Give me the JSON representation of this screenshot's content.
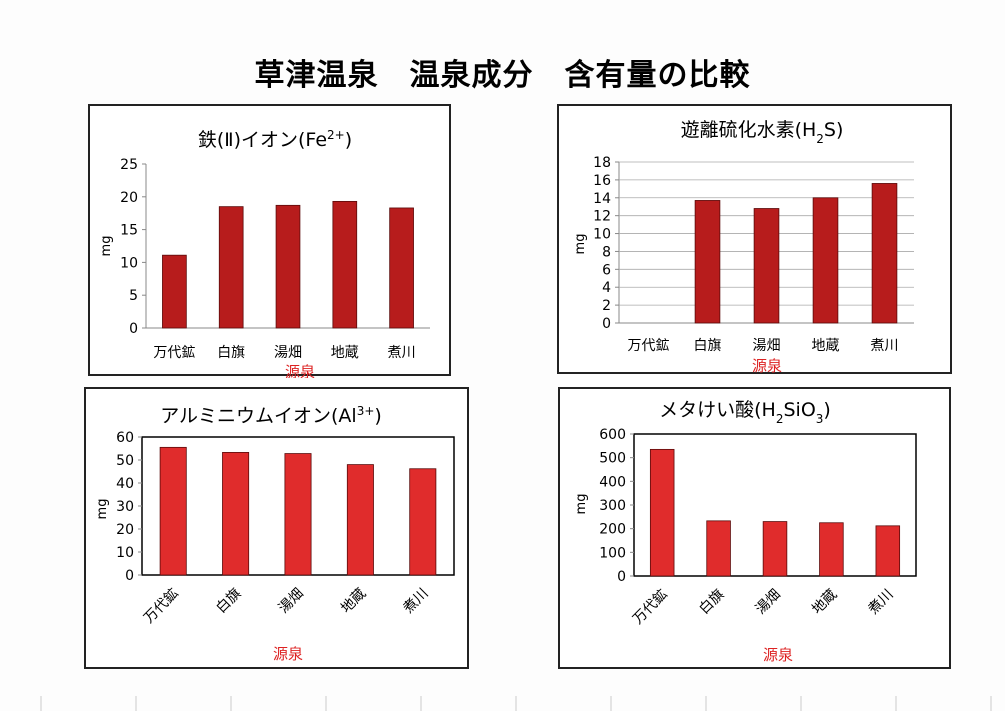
{
  "page": {
    "title": "草津温泉　温泉成分　含有量の比較"
  },
  "chart_data": [
    {
      "type": "bar",
      "title_parts": [
        "鉄(Ⅱ)イオン(Fe",
        "2+",
        ")"
      ],
      "title": "鉄(Ⅱ)イオン(Fe2+)",
      "ylabel": "mg",
      "xlabel": "源泉",
      "categories": [
        "万代鉱",
        "白旗",
        "湯畑",
        "地蔵",
        "煮川"
      ],
      "values": [
        11.1,
        18.5,
        18.7,
        19.3,
        18.3
      ],
      "ylim": [
        0,
        25
      ],
      "yticks": [
        0,
        5,
        10,
        15,
        20,
        25
      ],
      "bar_color": "#b71c1c",
      "grid": false
    },
    {
      "type": "bar",
      "title_parts": [
        "遊離硫化水素(H",
        "2",
        "S)"
      ],
      "title": "遊離硫化水素(H2S)",
      "ylabel": "mg",
      "xlabel": "源泉",
      "categories": [
        "万代鉱",
        "白旗",
        "湯畑",
        "地蔵",
        "煮川"
      ],
      "values": [
        0,
        13.7,
        12.8,
        14.0,
        15.6
      ],
      "ylim": [
        0,
        18
      ],
      "yticks": [
        0,
        2,
        4,
        6,
        8,
        10,
        12,
        14,
        16,
        18
      ],
      "bar_color": "#b71c1c",
      "grid": true
    },
    {
      "type": "bar",
      "title_parts": [
        "アルミニウムイオン(Al",
        "3+",
        ")"
      ],
      "title": "アルミニウムイオン(Al3+)",
      "ylabel": "mg",
      "xlabel": "源泉",
      "categories": [
        "万代鉱",
        "白旗",
        "湯畑",
        "地蔵",
        "煮川"
      ],
      "values": [
        55.5,
        53.3,
        52.8,
        48.0,
        46.2
      ],
      "ylim": [
        0,
        60
      ],
      "yticks": [
        0,
        10,
        20,
        30,
        40,
        50,
        60
      ],
      "bar_color": "#e02c2c",
      "grid": false
    },
    {
      "type": "bar",
      "title_parts": [
        "メタけい酸(H",
        "2",
        "SiO",
        "3",
        ")"
      ],
      "title": "メタけい酸(H2SiO3)",
      "ylabel": "mg",
      "xlabel": "源泉",
      "categories": [
        "万代鉱",
        "白旗",
        "湯畑",
        "地蔵",
        "煮川"
      ],
      "values": [
        535,
        233,
        230,
        225,
        212
      ],
      "ylim": [
        0,
        600
      ],
      "yticks": [
        0,
        100,
        200,
        300,
        400,
        500,
        600
      ],
      "bar_color": "#e02c2c",
      "grid": false
    }
  ]
}
